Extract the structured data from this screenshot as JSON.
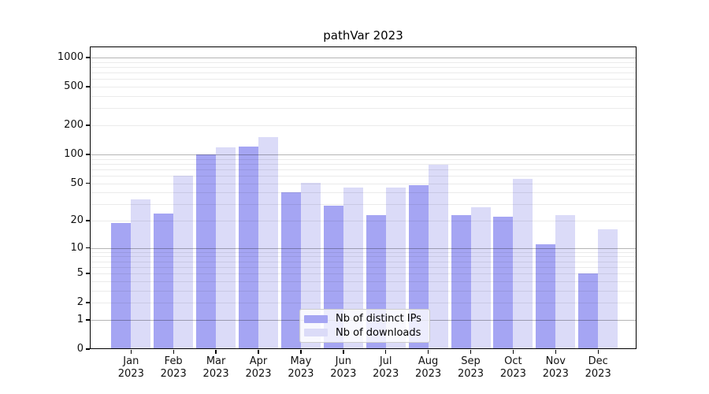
{
  "chart_data": {
    "type": "bar",
    "title": "pathVar 2023",
    "categories": [
      "Jan 2023",
      "Feb 2023",
      "Mar 2023",
      "Apr 2023",
      "May 2023",
      "Jun 2023",
      "Jul 2023",
      "Aug 2023",
      "Sep 2023",
      "Oct 2023",
      "Nov 2023",
      "Dec 2023"
    ],
    "series": [
      {
        "name": "Nb of distinct IPs",
        "color": "#a5a5f3",
        "values": [
          19,
          24,
          100,
          121,
          40,
          29,
          23,
          48,
          23,
          22,
          11,
          5
        ]
      },
      {
        "name": "Nb of downloads",
        "color": "#dbdbf8",
        "values": [
          34,
          60,
          118,
          150,
          50,
          45,
          45,
          78,
          28,
          55,
          23,
          16
        ]
      }
    ],
    "xlabel": "",
    "ylabel": "",
    "yscale": "log1p",
    "yticks": [
      0,
      1,
      2,
      5,
      10,
      20,
      50,
      100,
      200,
      500,
      1000
    ],
    "ylim": [
      0,
      1300
    ],
    "grid": "on",
    "legend_position": "lower center"
  }
}
